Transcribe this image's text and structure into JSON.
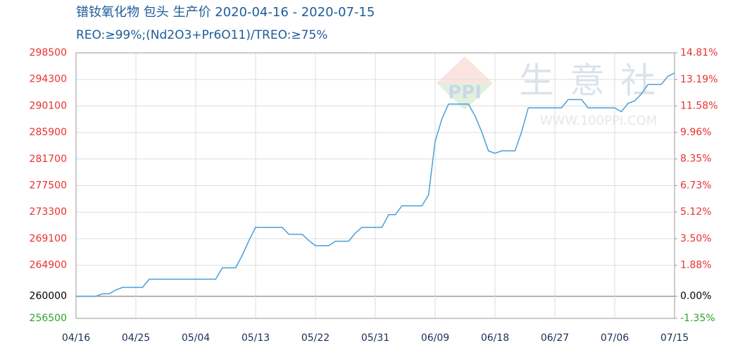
{
  "chart_data": {
    "type": "line",
    "title": "镨钕氧化物 包头 生产价 2020-04-16 - 2020-07-15",
    "subtitle": "REO:≥99%;(Nd2O3+Pr6O11)/TREO:≥75%",
    "watermark": {
      "text": "生意社",
      "url": "WWW.100PPI.COM",
      "logo": "PPI"
    },
    "categories": [
      "04/16",
      null,
      null,
      null,
      null,
      null,
      null,
      null,
      null,
      "04/25",
      null,
      null,
      null,
      null,
      null,
      null,
      null,
      null,
      "05/04",
      null,
      null,
      null,
      null,
      null,
      null,
      null,
      null,
      "05/13",
      null,
      null,
      null,
      null,
      null,
      null,
      null,
      null,
      "05/22",
      null,
      null,
      null,
      null,
      null,
      null,
      null,
      null,
      "05/31",
      null,
      null,
      null,
      null,
      null,
      null,
      null,
      null,
      "06/09",
      null,
      null,
      null,
      null,
      null,
      null,
      null,
      null,
      "06/18",
      null,
      null,
      null,
      null,
      null,
      null,
      null,
      null,
      "06/27",
      null,
      null,
      null,
      null,
      null,
      null,
      null,
      null,
      "07/06",
      null,
      null,
      null,
      null,
      null,
      null,
      null,
      null,
      "07/15"
    ],
    "series": [
      {
        "color": "#4a9fd8",
        "values": [
          260000,
          260000,
          260000,
          260000,
          260400,
          260400,
          261000,
          261400,
          261400,
          261400,
          261400,
          262700,
          262700,
          262700,
          262700,
          262700,
          262700,
          262700,
          262700,
          262700,
          262700,
          262700,
          264500,
          264500,
          264500,
          266500,
          268800,
          270900,
          270900,
          270900,
          270900,
          270900,
          269800,
          269800,
          269800,
          268800,
          268000,
          268000,
          268000,
          268700,
          268700,
          268700,
          270000,
          270900,
          270900,
          270900,
          270900,
          272900,
          272900,
          274300,
          274300,
          274300,
          274300,
          276000,
          284500,
          288000,
          290400,
          290400,
          290400,
          290400,
          288500,
          286000,
          283000,
          282600,
          283000,
          283000,
          283000,
          286000,
          289800,
          289800,
          289800,
          289800,
          289800,
          289800,
          291100,
          291100,
          291100,
          289800,
          289800,
          289800,
          289800,
          289800,
          289200,
          290500,
          290900,
          292000,
          293500,
          293500,
          293500,
          294800,
          295300
        ]
      }
    ],
    "ylim": [
      256500,
      298500
    ],
    "yticks": [
      256500,
      260000,
      264900,
      269100,
      273300,
      277500,
      281700,
      285900,
      290100,
      294300,
      298500
    ],
    "y2lim": [
      -1.35,
      14.81
    ],
    "y2ticks": [
      {
        "value": -1.35,
        "label": "-1.35%"
      },
      {
        "value": 0,
        "label": "0.00%"
      },
      {
        "value": 1.88,
        "label": "1.88%"
      },
      {
        "value": 3.5,
        "label": "3.50%"
      },
      {
        "value": 5.12,
        "label": "5.12%"
      },
      {
        "value": 6.73,
        "label": "6.73%"
      },
      {
        "value": 8.35,
        "label": "8.35%"
      },
      {
        "value": 9.96,
        "label": "9.96%"
      },
      {
        "value": 11.58,
        "label": "11.58%"
      },
      {
        "value": 13.19,
        "label": "13.19%"
      },
      {
        "value": 14.81,
        "label": "14.81%"
      }
    ],
    "grid": true
  }
}
